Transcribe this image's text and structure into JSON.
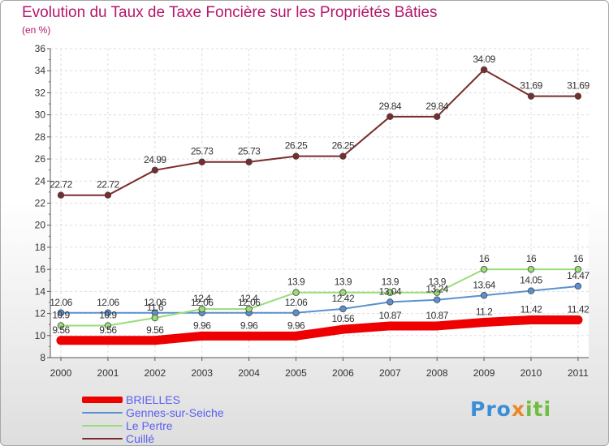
{
  "title": "Evolution du Taux de Taxe Foncière sur les Propriétés Bâties",
  "subtitle": "(en %)",
  "logo": {
    "p1": "Pro",
    "p2": "x",
    "p3": "iti"
  },
  "chart_data": {
    "type": "line",
    "title": "Evolution du Taux de Taxe Foncière sur les Propriétés Bâties",
    "ylabel": "(en %)",
    "xlabel": "",
    "categories": [
      "2000",
      "2001",
      "2002",
      "2003",
      "2004",
      "2005",
      "2006",
      "2007",
      "2008",
      "2009",
      "2010",
      "2011"
    ],
    "ylim": [
      8,
      36
    ],
    "yticks": [
      8,
      10,
      12,
      14,
      16,
      18,
      20,
      22,
      24,
      26,
      28,
      30,
      32,
      34,
      36
    ],
    "grid": true,
    "legend_position": "bottom-left",
    "series": [
      {
        "name": "BRIELLES",
        "color": "#ee0000",
        "values": [
          9.56,
          9.56,
          9.56,
          9.96,
          9.96,
          9.96,
          10.56,
          10.87,
          10.87,
          11.2,
          11.42,
          11.42
        ],
        "labels": [
          "9.56",
          "9.56",
          "9.56",
          "9.96",
          "9.96",
          "9.96",
          "10.56",
          "10.87",
          "10.87",
          "11.2",
          "11.42",
          "11.42"
        ]
      },
      {
        "name": "Gennes-sur-Seiche",
        "color": "#5b91cf",
        "values": [
          12.06,
          12.06,
          12.06,
          12.06,
          12.06,
          12.06,
          12.42,
          13.04,
          13.24,
          13.64,
          14.05,
          14.47
        ],
        "labels": [
          "12.06",
          "12.06",
          "12.06",
          "12.06",
          "12.06",
          "12.06",
          "12.42",
          "13.04",
          "13.24",
          "13.64",
          "14.05",
          "14.47"
        ]
      },
      {
        "name": "Le Pertre",
        "color": "#99dd77",
        "values": [
          10.9,
          10.9,
          11.6,
          12.4,
          12.4,
          13.9,
          13.9,
          13.9,
          13.9,
          16,
          16,
          16
        ],
        "labels": [
          "10.9",
          "10.9",
          "11.6",
          "12.4",
          "12.4",
          "13.9",
          "13.9",
          "13.9",
          "13.9",
          "16",
          "16",
          "16"
        ]
      },
      {
        "name": "Cuillé",
        "color": "#7a2c2c",
        "values": [
          22.72,
          22.72,
          24.99,
          25.73,
          25.73,
          26.25,
          26.25,
          29.84,
          29.84,
          34.09,
          31.69,
          31.69
        ],
        "labels": [
          "22.72",
          "22.72",
          "24.99",
          "25.73",
          "25.73",
          "26.25",
          "26.25",
          "29.84",
          "29.84",
          "34.09",
          "31.69",
          "31.69"
        ]
      }
    ]
  }
}
